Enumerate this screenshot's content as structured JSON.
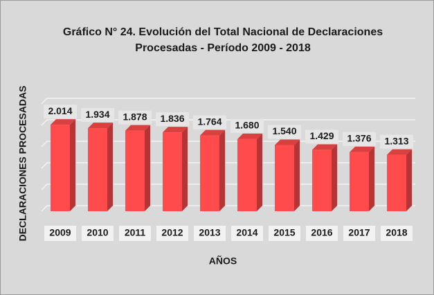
{
  "chart_data": {
    "type": "bar",
    "title": "Gráfico N° 24. Evolución del Total Nacional de Declaraciones",
    "subtitle": "Procesadas - Período 2009 - 2018",
    "x_label": "AÑOS",
    "y_label": "DECLARACIONES PROCESADAS",
    "categories": [
      "2009",
      "2010",
      "2011",
      "2012",
      "2013",
      "2014",
      "2015",
      "2016",
      "2017",
      "2018"
    ],
    "values": [
      2014,
      1934,
      1878,
      1836,
      1764,
      1680,
      1540,
      1429,
      1376,
      1313
    ],
    "value_labels": [
      "2.014",
      "1.934",
      "1.878",
      "1.836",
      "1.764",
      "1.680",
      "1.540",
      "1.429",
      "1.376",
      "1.313"
    ],
    "color": "#ff4b4b",
    "ylim": [
      0,
      2500
    ],
    "yticks": [
      0,
      500,
      1000,
      1500,
      2000,
      2500
    ],
    "show_ytick_labels": false,
    "grid": true
  }
}
